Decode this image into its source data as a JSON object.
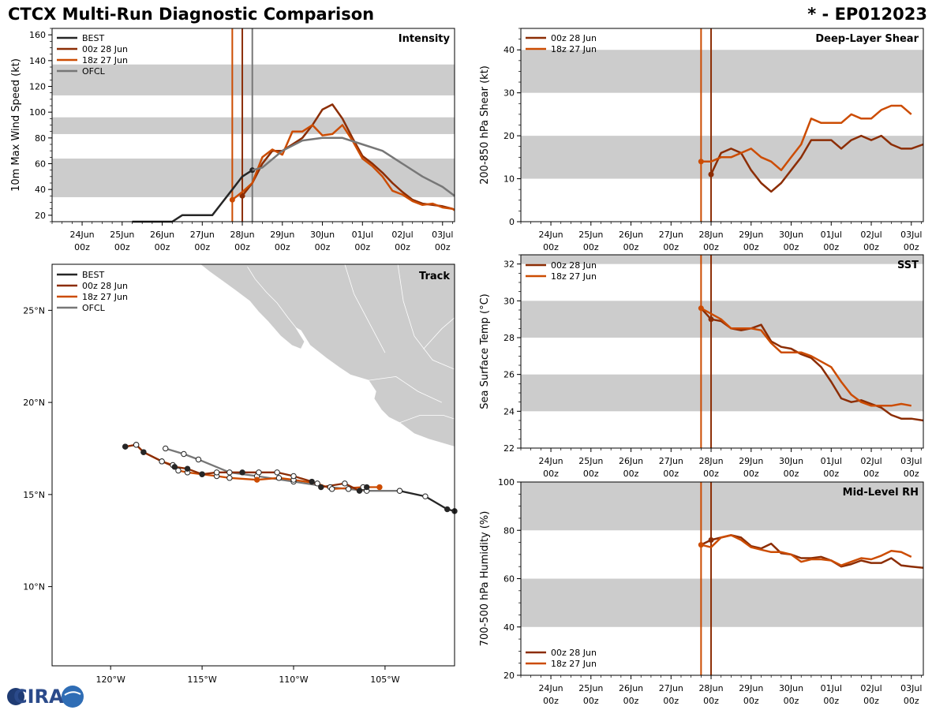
{
  "header": {
    "title": "CTCX Multi-Run Diagnostic Comparison",
    "storm_id": "* - EP012023"
  },
  "logo": {
    "text": "CIRA"
  },
  "colors": {
    "best": "#262626",
    "run00z": "#8c2d04",
    "run18z": "#cc4c02",
    "ofcl": "#777777",
    "band": "#cccccc",
    "land": "#cccccc"
  },
  "legend": {
    "best": "BEST",
    "run00z": "00z 28 Jun",
    "run18z": "18z 27 Jun",
    "ofcl": "OFCL"
  },
  "time_axis": {
    "tick_days": [
      "24Jun",
      "25Jun",
      "26Jun",
      "27Jun",
      "28Jun",
      "29Jun",
      "30Jun",
      "01Jul",
      "02Jul",
      "03Jul"
    ],
    "tick_hour": "00z"
  },
  "chart_data": [
    {
      "id": "intensity",
      "type": "line",
      "title": "Intensity",
      "ylabel": "10m Max Wind Speed (kt)",
      "xlim": [
        -0.75,
        9.3
      ],
      "ylim": [
        15,
        165
      ],
      "yticks": [
        20,
        40,
        60,
        80,
        100,
        120,
        140,
        160
      ],
      "bands": [
        [
          34,
          64
        ],
        [
          83,
          96
        ],
        [
          113,
          137
        ]
      ],
      "vlines": [
        {
          "series": "run18z",
          "x": 3.75
        },
        {
          "series": "run00z",
          "x": 4.0
        },
        {
          "series": "ofcl",
          "x": 4.25
        }
      ],
      "series": [
        {
          "key": "best",
          "name": "BEST",
          "x": [
            1.25,
            1.5,
            1.75,
            2.0,
            2.25,
            2.5,
            2.75,
            3.0,
            3.25,
            3.5,
            3.75,
            4.0,
            4.25
          ],
          "y": [
            15,
            15,
            15,
            15,
            15,
            20,
            20,
            20,
            20,
            30,
            40,
            50,
            55
          ],
          "markers": [
            12
          ]
        },
        {
          "key": "run00z",
          "name": "00z 28 Jun",
          "x": [
            4.0,
            4.25,
            4.5,
            4.75,
            5.0,
            5.25,
            5.5,
            5.75,
            6.0,
            6.25,
            6.5,
            6.75,
            7.0,
            7.25,
            7.5,
            7.75,
            8.0,
            8.25,
            8.5,
            8.75,
            9.0,
            9.25,
            9.3
          ],
          "y": [
            35,
            45,
            60,
            70,
            70,
            75,
            80,
            90,
            102,
            106,
            95,
            80,
            66,
            60,
            53,
            45,
            38,
            32,
            29,
            28,
            27,
            25,
            24
          ],
          "markers": [
            0
          ]
        },
        {
          "key": "run18z",
          "name": "18z 27 Jun",
          "x": [
            3.75,
            4.0,
            4.25,
            4.5,
            4.75,
            5.0,
            5.25,
            5.5,
            5.75,
            6.0,
            6.25,
            6.5,
            6.75,
            7.0,
            7.25,
            7.5,
            7.75,
            8.0,
            8.25,
            8.5,
            8.75,
            9.0,
            9.25,
            9.3
          ],
          "y": [
            32,
            38,
            45,
            65,
            71,
            67,
            85,
            85,
            90,
            82,
            83,
            90,
            78,
            64,
            58,
            50,
            39,
            36,
            31,
            28,
            29,
            26,
            25,
            24
          ],
          "markers": [
            0
          ]
        },
        {
          "key": "ofcl",
          "name": "OFCL",
          "x": [
            4.25,
            4.5,
            5.0,
            5.5,
            6.0,
            6.5,
            7.0,
            7.5,
            8.0,
            8.5,
            9.0,
            9.3
          ],
          "y": [
            55,
            57,
            70,
            78,
            80,
            80,
            75,
            70,
            60,
            50,
            42,
            35
          ],
          "markers": []
        }
      ]
    },
    {
      "id": "shear",
      "type": "line",
      "title": "Deep-Layer Shear",
      "ylabel": "200-850 hPa Shear (kt)",
      "xlim": [
        -0.75,
        9.3
      ],
      "ylim": [
        0,
        45
      ],
      "yticks": [
        0,
        10,
        20,
        30,
        40
      ],
      "bands": [
        [
          10,
          20
        ],
        [
          30,
          40
        ]
      ],
      "vlines": [
        {
          "series": "run18z",
          "x": 3.75
        },
        {
          "series": "run00z",
          "x": 4.0
        }
      ],
      "series": [
        {
          "key": "run00z",
          "name": "00z 28 Jun",
          "x": [
            4.0,
            4.25,
            4.5,
            4.75,
            5.0,
            5.25,
            5.5,
            5.75,
            6.0,
            6.25,
            6.5,
            6.75,
            7.0,
            7.25,
            7.5,
            7.75,
            8.0,
            8.25,
            8.5,
            8.75,
            9.0,
            9.3
          ],
          "y": [
            11,
            16,
            17,
            16,
            12,
            9,
            7,
            9,
            12,
            15,
            19,
            19,
            19,
            17,
            19,
            20,
            19,
            20,
            18,
            17,
            17,
            18
          ],
          "markers": [
            0
          ]
        },
        {
          "key": "run18z",
          "name": "18z 27 Jun",
          "x": [
            3.75,
            4.0,
            4.25,
            4.5,
            4.75,
            5.0,
            5.25,
            5.5,
            5.75,
            6.0,
            6.25,
            6.5,
            6.75,
            7.0,
            7.25,
            7.5,
            7.75,
            8.0,
            8.25,
            8.5,
            8.75,
            9.0
          ],
          "y": [
            14,
            14,
            15,
            15,
            16,
            17,
            15,
            14,
            12,
            15,
            18,
            24,
            23,
            23,
            23,
            25,
            24,
            24,
            26,
            27,
            27,
            25
          ],
          "markers": [
            0
          ]
        }
      ]
    },
    {
      "id": "sst",
      "type": "line",
      "title": "SST",
      "ylabel": "Sea Surface Temp (°C)",
      "xlim": [
        -0.75,
        9.3
      ],
      "ylim": [
        22,
        32.5
      ],
      "yticks": [
        22,
        24,
        26,
        28,
        30,
        32
      ],
      "bands": [
        [
          24,
          26
        ],
        [
          28,
          30
        ],
        [
          32,
          32.5
        ]
      ],
      "vlines": [
        {
          "series": "run18z",
          "x": 3.75
        },
        {
          "series": "run00z",
          "x": 4.0
        }
      ],
      "series": [
        {
          "key": "run00z",
          "name": "00z 28 Jun",
          "x": [
            3.75,
            4.0,
            4.25,
            4.5,
            4.75,
            5.0,
            5.25,
            5.5,
            5.75,
            6.0,
            6.25,
            6.5,
            6.75,
            7.0,
            7.25,
            7.5,
            7.75,
            8.0,
            8.25,
            8.5,
            8.75,
            9.0,
            9.3
          ],
          "y": [
            29.6,
            29.0,
            28.9,
            28.5,
            28.4,
            28.5,
            28.7,
            27.8,
            27.5,
            27.4,
            27.1,
            26.9,
            26.4,
            25.6,
            24.7,
            24.5,
            24.6,
            24.4,
            24.2,
            23.8,
            23.6,
            23.6,
            23.5
          ],
          "markers": [
            1
          ]
        },
        {
          "key": "run18z",
          "name": "18z 27 Jun",
          "x": [
            3.75,
            4.0,
            4.25,
            4.5,
            4.75,
            5.0,
            5.25,
            5.5,
            5.75,
            6.0,
            6.25,
            6.5,
            6.75,
            7.0,
            7.25,
            7.5,
            7.75,
            8.0,
            8.25,
            8.5,
            8.75,
            9.0
          ],
          "y": [
            29.6,
            29.3,
            29.0,
            28.5,
            28.5,
            28.5,
            28.4,
            27.7,
            27.2,
            27.2,
            27.2,
            27.0,
            26.7,
            26.4,
            25.6,
            24.9,
            24.5,
            24.3,
            24.3,
            24.3,
            24.4,
            24.3
          ],
          "markers": [
            0
          ]
        }
      ]
    },
    {
      "id": "rh",
      "type": "line",
      "title": "Mid-Level RH",
      "ylabel": "700-500 hPa Humidity (%)",
      "xlim": [
        -0.75,
        9.3
      ],
      "ylim": [
        20,
        100
      ],
      "yticks": [
        20,
        40,
        60,
        80,
        100
      ],
      "bands": [
        [
          40,
          60
        ],
        [
          80,
          100
        ]
      ],
      "vlines": [
        {
          "series": "run18z",
          "x": 3.75
        },
        {
          "series": "run00z",
          "x": 4.0
        }
      ],
      "series": [
        {
          "key": "run00z",
          "name": "00z 28 Jun",
          "x": [
            3.75,
            4.0,
            4.25,
            4.5,
            4.75,
            5.0,
            5.25,
            5.5,
            5.75,
            6.0,
            6.25,
            6.5,
            6.75,
            7.0,
            7.25,
            7.5,
            7.75,
            8.0,
            8.25,
            8.5,
            8.75,
            9.0,
            9.3
          ],
          "y": [
            74,
            76,
            77,
            78,
            77,
            73.5,
            72.5,
            74.5,
            70.5,
            70,
            68.5,
            68.5,
            69,
            67.5,
            65,
            66,
            67.5,
            66.5,
            66.5,
            68.5,
            65.5,
            65,
            64.5
          ],
          "markers": [
            1
          ]
        },
        {
          "key": "run18z",
          "name": "18z 27 Jun",
          "x": [
            3.75,
            4.0,
            4.25,
            4.5,
            4.75,
            5.0,
            5.25,
            5.5,
            5.75,
            6.0,
            6.25,
            6.5,
            6.75,
            7.0,
            7.25,
            7.5,
            7.75,
            8.0,
            8.25,
            8.5,
            8.75,
            9.0
          ],
          "y": [
            74,
            73,
            77,
            78,
            76,
            73,
            72,
            71,
            71,
            70,
            67,
            68,
            68,
            67.5,
            65.5,
            67,
            68.5,
            68,
            69.5,
            71.5,
            71,
            69
          ],
          "markers": [
            0
          ]
        }
      ]
    },
    {
      "id": "track",
      "type": "scatter",
      "title": "Track",
      "xlim": [
        -123.2,
        -101.2
      ],
      "ylim": [
        5.7,
        27.5
      ],
      "xticks": [
        -120,
        -115,
        -110,
        -105
      ],
      "xtick_labels": [
        "120°W",
        "115°W",
        "110°W",
        "105°W"
      ],
      "yticks": [
        10,
        15,
        20,
        25
      ],
      "ytick_labels": [
        "10°N",
        "15°N",
        "20°N",
        "25°N"
      ],
      "series": [
        {
          "key": "best",
          "name": "BEST",
          "lon": [
            -104.2,
            -102.8,
            -101.6,
            -101.2
          ],
          "lat": [
            15.2,
            14.9,
            14.2,
            14.1
          ],
          "filled": [
            false,
            false,
            true,
            true
          ]
        },
        {
          "key": "run00z",
          "name": "00z 28 Jun",
          "lon": [
            -106.0,
            -106.4,
            -107.2,
            -108.5,
            -109.0,
            -110.0,
            -110.9,
            -111.9,
            -112.8,
            -114.2,
            -115.0,
            -115.8,
            -116.5,
            -117.2,
            -118.2,
            -118.6,
            -119.2
          ],
          "lat": [
            15.4,
            15.2,
            15.6,
            15.4,
            15.7,
            16.0,
            16.2,
            16.2,
            16.2,
            16.2,
            16.1,
            16.4,
            16.5,
            16.8,
            17.3,
            17.7,
            17.6
          ],
          "filled": [
            true,
            true,
            false,
            true,
            true,
            false,
            false,
            false,
            true,
            false,
            true,
            true,
            true,
            false,
            true,
            false,
            true
          ]
        },
        {
          "key": "run18z",
          "name": "18z 27 Jun",
          "lon": [
            -105.3,
            -106.2,
            -107.9,
            -108.7,
            -110.0,
            -110.8,
            -112.0,
            -113.5,
            -114.2,
            -115.0,
            -115.8,
            -116.3,
            -116.6,
            -117.2,
            -118.2,
            -118.6,
            -119.2
          ],
          "lat": [
            15.4,
            15.4,
            15.3,
            15.6,
            15.8,
            15.9,
            15.8,
            15.9,
            16.0,
            16.1,
            16.2,
            16.3,
            16.6,
            16.8,
            17.3,
            17.7,
            17.6
          ],
          "filled": [
            true,
            false,
            false,
            false,
            false,
            false,
            true,
            false,
            false,
            false,
            false,
            false,
            false,
            false,
            false,
            false,
            false
          ]
        },
        {
          "key": "ofcl",
          "name": "OFCL",
          "lon": [
            -104.2,
            -106.0,
            -107.0,
            -108.0,
            -110.0,
            -112.0,
            -113.5,
            -115.2,
            -116.0,
            -117.0
          ],
          "lat": [
            15.2,
            15.2,
            15.3,
            15.4,
            15.7,
            16.0,
            16.2,
            16.9,
            17.2,
            17.5
          ],
          "filled": [
            false,
            false,
            false,
            false,
            false,
            false,
            false,
            false,
            false,
            false
          ]
        }
      ]
    }
  ]
}
